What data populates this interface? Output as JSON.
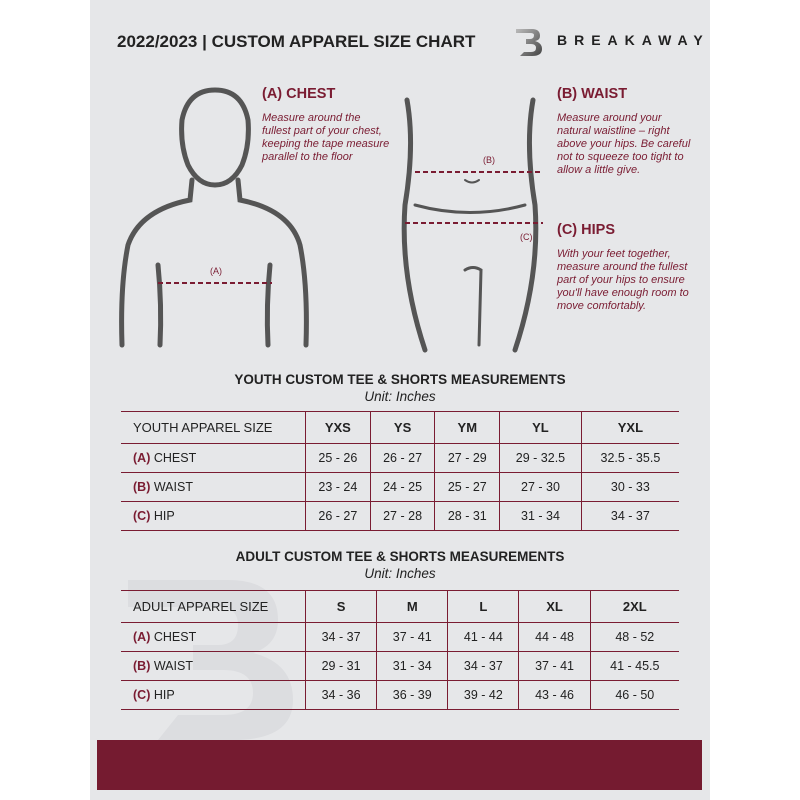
{
  "header": {
    "title": "2022/2023  |  CUSTOM APPAREL SIZE CHART",
    "brand": "BREAKAWAY"
  },
  "measures": {
    "chest": {
      "title": "(A) CHEST",
      "marker": "(A)",
      "desc": "Measure around the fullest part of your chest, keeping the tape measure parallel to the floor"
    },
    "waist": {
      "title": "(B) WAIST",
      "marker": "(B)",
      "desc": "Measure around your natural waistline – right above your hips. Be careful not to squeeze too tight to allow a little give."
    },
    "hips": {
      "title": "(C) HIPS",
      "marker": "(C)",
      "desc": "With your feet together, measure around the fullest part of your hips to ensure you'll have enough room to move comfortably."
    }
  },
  "youth": {
    "title": "YOUTH CUSTOM TEE & SHORTS MEASUREMENTS",
    "unit": "Unit: Inches",
    "header": "YOUTH APPAREL SIZE",
    "sizes": [
      "YXS",
      "YS",
      "YM",
      "YL",
      "YXL"
    ],
    "rows": [
      {
        "tag": "(A)",
        "label": "CHEST",
        "values": [
          "25 - 26",
          "26 - 27",
          "27 - 29",
          "29 - 32.5",
          "32.5 - 35.5"
        ]
      },
      {
        "tag": "(B)",
        "label": "WAIST",
        "values": [
          "23 - 24",
          "24 - 25",
          "25 - 27",
          "27 - 30",
          "30 - 33"
        ]
      },
      {
        "tag": "(C)",
        "label": "HIP",
        "values": [
          "26 - 27",
          "27 - 28",
          "28 - 31",
          "31 - 34",
          "34 - 37"
        ]
      }
    ]
  },
  "adult": {
    "title": "ADULT CUSTOM TEE & SHORTS MEASUREMENTS",
    "unit": "Unit: Inches",
    "header": "ADULT APPAREL SIZE",
    "sizes": [
      "S",
      "M",
      "L",
      "XL",
      "2XL"
    ],
    "rows": [
      {
        "tag": "(A)",
        "label": "CHEST",
        "values": [
          "34 - 37",
          "37 - 41",
          "41 - 44",
          "44 - 48",
          "48 - 52"
        ]
      },
      {
        "tag": "(B)",
        "label": "WAIST",
        "values": [
          "29 - 31",
          "31 - 34",
          "34 - 37",
          "37 - 41",
          "41 - 45.5"
        ]
      },
      {
        "tag": "(C)",
        "label": "HIP",
        "values": [
          "34 - 36",
          "36 - 39",
          "39 - 42",
          "43 - 46",
          "46 - 50"
        ]
      }
    ]
  },
  "colors": {
    "accent": "#7a1c32",
    "background": "#e6e7e9"
  }
}
